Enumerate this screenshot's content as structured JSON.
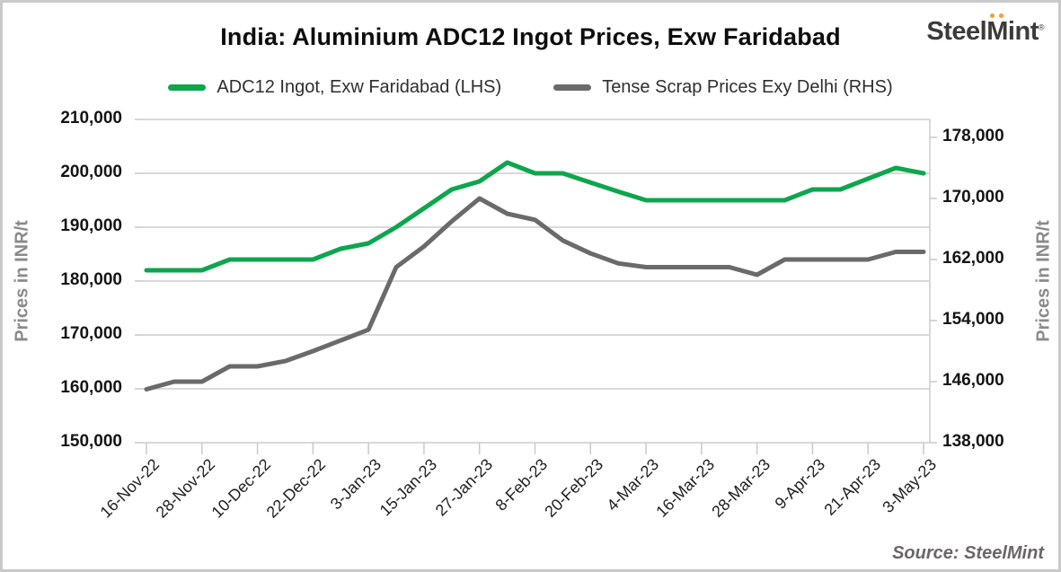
{
  "header": {
    "title": "India: Aluminium ADC12 Ingot Prices, Exw Faridabad",
    "logo": {
      "steel": "Steel",
      "m": "M",
      "int": "int",
      "reg": "®"
    }
  },
  "legend": [
    {
      "label": "ADC12 Ingot, Exw Faridabad (LHS)",
      "color": "#0da64d"
    },
    {
      "label": "Tense Scrap Prices Exy Delhi (RHS)",
      "color": "#6a6a6a"
    }
  ],
  "left_axis": {
    "title": "Prices in INR/t",
    "ticks": [
      150000,
      160000,
      170000,
      180000,
      190000,
      200000,
      210000
    ]
  },
  "right_axis": {
    "title": "Prices in INR/t",
    "ticks": [
      138000,
      146000,
      154000,
      162000,
      170000,
      178000
    ]
  },
  "source": "Source: SteelMint",
  "chart_data": {
    "type": "line",
    "title": "India: Aluminium ADC12 Ingot Prices, Exw Faridabad",
    "x": [
      "16-Nov-22",
      "22-Nov-22",
      "28-Nov-22",
      "4-Dec-22",
      "10-Dec-22",
      "16-Dec-22",
      "22-Dec-22",
      "28-Dec-22",
      "3-Jan-23",
      "9-Jan-23",
      "15-Jan-23",
      "21-Jan-23",
      "27-Jan-23",
      "2-Feb-23",
      "8-Feb-23",
      "14-Feb-23",
      "20-Feb-23",
      "26-Feb-23",
      "4-Mar-23",
      "10-Mar-23",
      "16-Mar-23",
      "22-Mar-23",
      "28-Mar-23",
      "3-Apr-23",
      "9-Apr-23",
      "15-Apr-23",
      "21-Apr-23",
      "27-Apr-23",
      "3-May-23"
    ],
    "x_tick_labels": [
      "16-Nov-22",
      "28-Nov-22",
      "10-Dec-22",
      "22-Dec-22",
      "3-Jan-23",
      "15-Jan-23",
      "27-Jan-23",
      "8-Feb-23",
      "20-Feb-23",
      "4-Mar-23",
      "16-Mar-23",
      "28-Mar-23",
      "9-Apr-23",
      "21-Apr-23",
      "3-May-23"
    ],
    "series": [
      {
        "name": "ADC12 Ingot, Exw Faridabad (LHS)",
        "axis": "left",
        "color": "#0da64d",
        "values": [
          182000,
          182000,
          182000,
          184000,
          184000,
          184000,
          184000,
          186000,
          187000,
          190000,
          193500,
          197000,
          198500,
          202000,
          200000,
          200000,
          198300,
          196600,
          195000,
          195000,
          195000,
          195000,
          195000,
          195000,
          197000,
          197000,
          199000,
          201000,
          200000
        ]
      },
      {
        "name": "Tense Scrap Prices Exy Delhi (RHS)",
        "axis": "right",
        "color": "#6a6a6a",
        "values": [
          145000,
          146000,
          146000,
          148000,
          148000,
          148700,
          150000,
          151400,
          152800,
          161000,
          163700,
          167000,
          170000,
          168000,
          167200,
          164500,
          162800,
          161500,
          161000,
          161000,
          161000,
          161000,
          160000,
          162000,
          162000,
          162000,
          162000,
          163000,
          163000
        ]
      }
    ],
    "left_ylabel": "Prices in INR/t",
    "right_ylabel": "Prices in INR/t",
    "left_ylim": [
      150000,
      210000
    ],
    "right_ylim": [
      138000,
      178000
    ],
    "grid": true,
    "legend_position": "top",
    "source": "Source: SteelMint"
  }
}
